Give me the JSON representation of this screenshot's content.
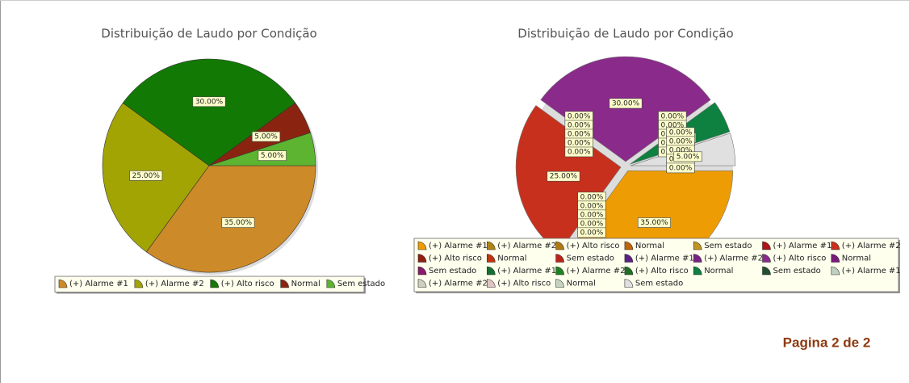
{
  "chart_data": [
    {
      "type": "pie",
      "title": "Distribuição de Laudo por Condição",
      "categories": [
        "(+) Alarme #1",
        "(+) Alarme #2",
        "(+) Alto risco",
        "Normal",
        "Sem estado"
      ],
      "values": [
        35,
        25,
        30,
        5,
        5
      ],
      "value_labels": [
        "35.00%",
        "25.00%",
        "30.00%",
        "5.00%",
        "5.00%"
      ],
      "colors": [
        "#cd8a28",
        "#a2a404",
        "#127a04",
        "#8a2410",
        "#5cb430"
      ],
      "exploded": false,
      "legend": "bottom"
    },
    {
      "type": "pie",
      "title": "Distribuição de Laudo por Condição",
      "categories": [
        "(+) Alarme #1",
        "(+) Alarme #2",
        "(+) Alto risco",
        "Normal",
        "Sem estado",
        "(+) Alarme #1",
        "(+) Alarme #2",
        "(+) Alto risco",
        "Normal",
        "Sem estado",
        "(+) Alarme #1",
        "(+) Alarme #2",
        "(+) Alto risco",
        "Normal",
        "Sem estado",
        "(+) Alarme #1",
        "(+) Alarme #2",
        "(+) Alto risco",
        "Normal",
        "Sem estado",
        "(+) Alarme #1",
        "(+) Alarme #2",
        "(+) Alto risco",
        "Normal",
        "Sem estado"
      ],
      "values": [
        35,
        0,
        0,
        0,
        0,
        0,
        25,
        0,
        0,
        0,
        0,
        0,
        30,
        0,
        0,
        0,
        0,
        0,
        5,
        0,
        0,
        0,
        0,
        0,
        5
      ],
      "value_labels": [
        "35.00%",
        "0.00%",
        "0.00%",
        "0.00%",
        "0.00%",
        "0.00%",
        "25.00%",
        "0.00%",
        "0.00%",
        "0.00%",
        "0.00%",
        "0.00%",
        "30.00%",
        "0.00%",
        "0.00%",
        "0.00%",
        "0.00%",
        "0.00%",
        "5.00%",
        "0.00%",
        "0.00%",
        "0.00%",
        "0.00%",
        "0.00%",
        "5.00%"
      ],
      "colors": [
        "#ee9c04",
        "#b08414",
        "#b07a10",
        "#c06404",
        "#c09420",
        "#b01414",
        "#c8301e",
        "#902010",
        "#c03410",
        "#b82418",
        "#5c2084",
        "#782484",
        "#8a2a8a",
        "#7a1a7a",
        "#8a1a6a",
        "#147032",
        "#208022",
        "#207022",
        "#0e8040",
        "#205030",
        "#c0d0c0",
        "#d0d0c0",
        "#e0c4c4",
        "#c4d4c0",
        "#e0e0e0"
      ],
      "exploded": true,
      "legend": "bottom"
    }
  ],
  "footer": "Pagina 2 de 2"
}
